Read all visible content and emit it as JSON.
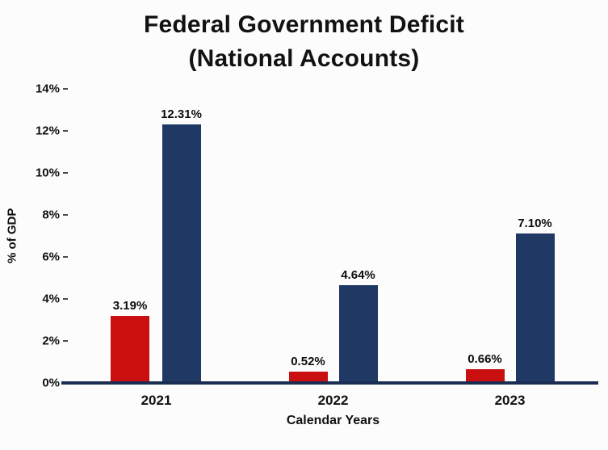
{
  "title": {
    "line1": "Federal Government Deficit",
    "line2": "(National Accounts)"
  },
  "chart_data": {
    "type": "bar",
    "categories": [
      "2021",
      "2022",
      "2023"
    ],
    "series": [
      {
        "name": "deficit-red",
        "color": "#c90f0f",
        "values": [
          3.19,
          0.52,
          0.66
        ],
        "labels": [
          "3.19%",
          "0.52%",
          "0.66%"
        ]
      },
      {
        "name": "deficit-navy",
        "color": "#1f3864",
        "values": [
          12.31,
          4.64,
          7.1
        ],
        "labels": [
          "12.31%",
          "4.64%",
          "7.10%"
        ]
      }
    ],
    "title": "Federal Government Deficit (National Accounts)",
    "xlabel": "Calendar Years",
    "ylabel": "%  of GDP",
    "ylim": [
      0,
      14
    ],
    "yticks": [
      0,
      2,
      4,
      6,
      8,
      10,
      12,
      14
    ],
    "ytick_labels": [
      "0%",
      "2%",
      "4%",
      "6%",
      "8%",
      "10%",
      "12%",
      "14%"
    ],
    "grid": false,
    "legend": "none"
  },
  "colors": {
    "bar_red": "#c90f0f",
    "bar_navy": "#1f3864",
    "axis_line": "#1b2d52",
    "background": "#fcfcfc",
    "text": "#121212"
  }
}
